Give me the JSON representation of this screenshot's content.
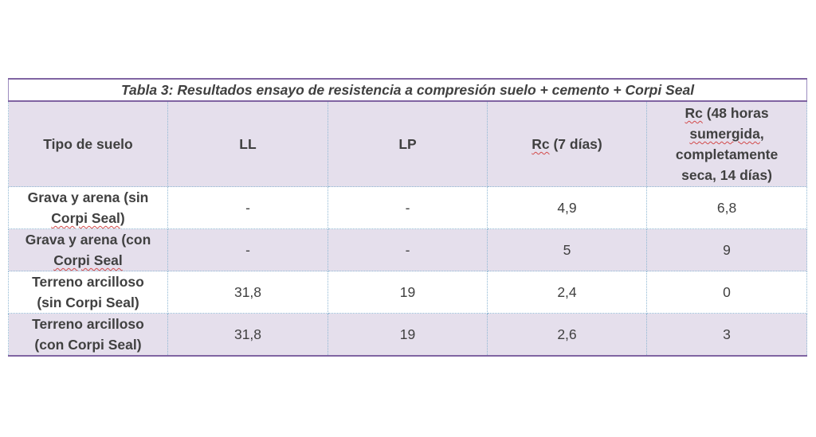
{
  "table": {
    "title": "Tabla 3: Resultados ensayo de resistencia a compresión suelo + cemento +  Corpi Seal",
    "headers": {
      "tipo": "Tipo de suelo",
      "ll": "LL",
      "lp": "LP",
      "rc7_prefix": "Rc",
      "rc7_suffix": " (7 días)",
      "rc48_prefix": "Rc",
      "rc48_line1": " (48 horas",
      "rc48_line2": "sumergida",
      "rc48_line3": ",",
      "rc48_line4": "completamente",
      "rc48_line5": "seca, 14 días)"
    },
    "rows": [
      {
        "label_a": "Grava y arena (sin",
        "label_b": "Corpi Seal",
        "label_c": ")",
        "ll": "-",
        "lp": "-",
        "rc7": "4,9",
        "rc48": "6,8"
      },
      {
        "label_a": "Grava y arena (con",
        "label_b": "Corpi Seal",
        "label_c": "",
        "ll": "-",
        "lp": "-",
        "rc7": "5",
        "rc48": "9"
      },
      {
        "label_a": "Terreno arcilloso",
        "label_b": "(sin Corpi Seal)",
        "label_c": "",
        "ll": "31,8",
        "lp": "19",
        "rc7": "2,4",
        "rc48": "0"
      },
      {
        "label_a": "Terreno arcilloso",
        "label_b": "(con Corpi Seal)",
        "label_c": "",
        "ll": "31,8",
        "lp": "19",
        "rc7": "2,6",
        "rc48": "3"
      }
    ]
  }
}
